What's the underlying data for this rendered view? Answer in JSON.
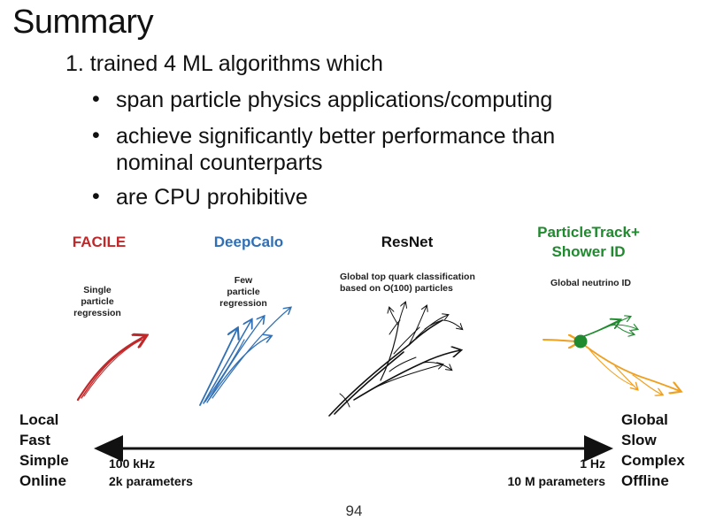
{
  "slide": {
    "title": "Summary",
    "point": "1. trained 4 ML algorithms which",
    "bullets": [
      "span particle physics applications/computing",
      "achieve significantly better performance than",
      "nominal counterparts",
      "are CPU prohibitive"
    ],
    "bullet_symbol": "•",
    "algorithms": [
      {
        "name": "FACILE",
        "desc": [
          "Single",
          "particle",
          "regression"
        ],
        "color": "#c0282a"
      },
      {
        "name": "DeepCalo",
        "desc": [
          "Few",
          "particle",
          "regression"
        ],
        "color": "#2f6fb5"
      },
      {
        "name": "ResNet",
        "desc": [
          "Global top quark classification",
          "based on O(100) particles"
        ],
        "color": "#111111"
      },
      {
        "name_lines": [
          "ParticleTrack+",
          "Shower ID"
        ],
        "desc": [
          "Global neutrino ID"
        ],
        "color": "#1f8a2e"
      }
    ],
    "left_labels": [
      "Local",
      "Fast",
      "Simple",
      "Online"
    ],
    "right_labels": [
      "Global",
      "Slow",
      "Complex",
      "Offline"
    ],
    "scale_left": [
      "100 kHz",
      "2k parameters"
    ],
    "scale_right": [
      "1 Hz",
      "10 M parameters"
    ],
    "orange": "#f0a020",
    "page_number": "94"
  }
}
